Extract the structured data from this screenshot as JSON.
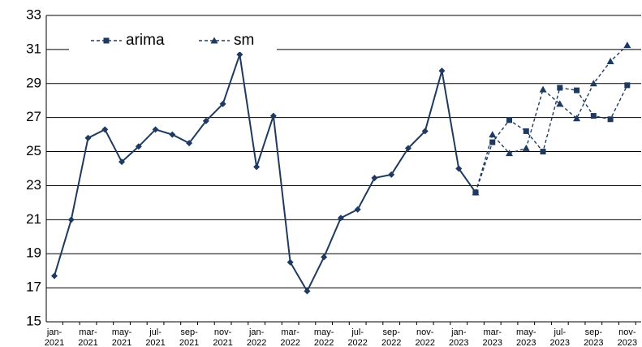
{
  "chart_data": {
    "type": "line",
    "categories": [
      "jan-2021",
      null,
      "mar-2021",
      null,
      "may-2021",
      null,
      "jul-2021",
      null,
      "sep-2021",
      null,
      "nov-2021",
      null,
      "jan-2022",
      null,
      "mar-2022",
      null,
      "may-2022",
      null,
      "jul-2022",
      null,
      "sep-2022",
      null,
      "nov-2022",
      null,
      "jan-2023",
      null,
      "mar-2023",
      null,
      "may-2023",
      null,
      "jul-2023",
      null,
      "sep-2023",
      null,
      "nov-2023"
    ],
    "series": [
      {
        "color": "#1f3a60",
        "marker": "diamond",
        "dashed": false,
        "values": [
          17.7,
          21.0,
          25.8,
          26.3,
          24.4,
          25.3,
          26.3,
          26.0,
          25.5,
          26.8,
          27.8,
          30.7,
          24.1,
          27.1,
          18.5,
          16.8,
          18.8,
          21.1,
          21.6,
          23.45,
          23.65,
          25.2,
          26.2,
          29.75,
          24.0,
          22.6,
          null,
          null,
          null,
          null,
          null,
          null,
          null,
          null,
          null
        ]
      },
      {
        "name": "arima",
        "color": "#1f3a60",
        "marker": "square",
        "dashed": true,
        "values": [
          null,
          null,
          null,
          null,
          null,
          null,
          null,
          null,
          null,
          null,
          null,
          null,
          null,
          null,
          null,
          null,
          null,
          null,
          null,
          null,
          null,
          null,
          null,
          null,
          null,
          22.6,
          25.55,
          26.85,
          26.2,
          25.0,
          28.75,
          28.6,
          27.1,
          26.9,
          28.9
        ]
      },
      {
        "name": "sm",
        "color": "#1f3a60",
        "marker": "triangle",
        "dashed": true,
        "values": [
          null,
          null,
          null,
          null,
          null,
          null,
          null,
          null,
          null,
          null,
          null,
          null,
          null,
          null,
          null,
          null,
          null,
          null,
          null,
          null,
          null,
          null,
          null,
          null,
          null,
          22.6,
          26.0,
          24.9,
          25.2,
          28.65,
          27.8,
          26.95,
          29.0,
          30.3,
          31.25
        ]
      }
    ],
    "ylim": [
      15,
      33
    ],
    "yticks": [
      15,
      17,
      19,
      21,
      23,
      25,
      27,
      29,
      31,
      33
    ],
    "grid": true,
    "legend": "top-left"
  }
}
